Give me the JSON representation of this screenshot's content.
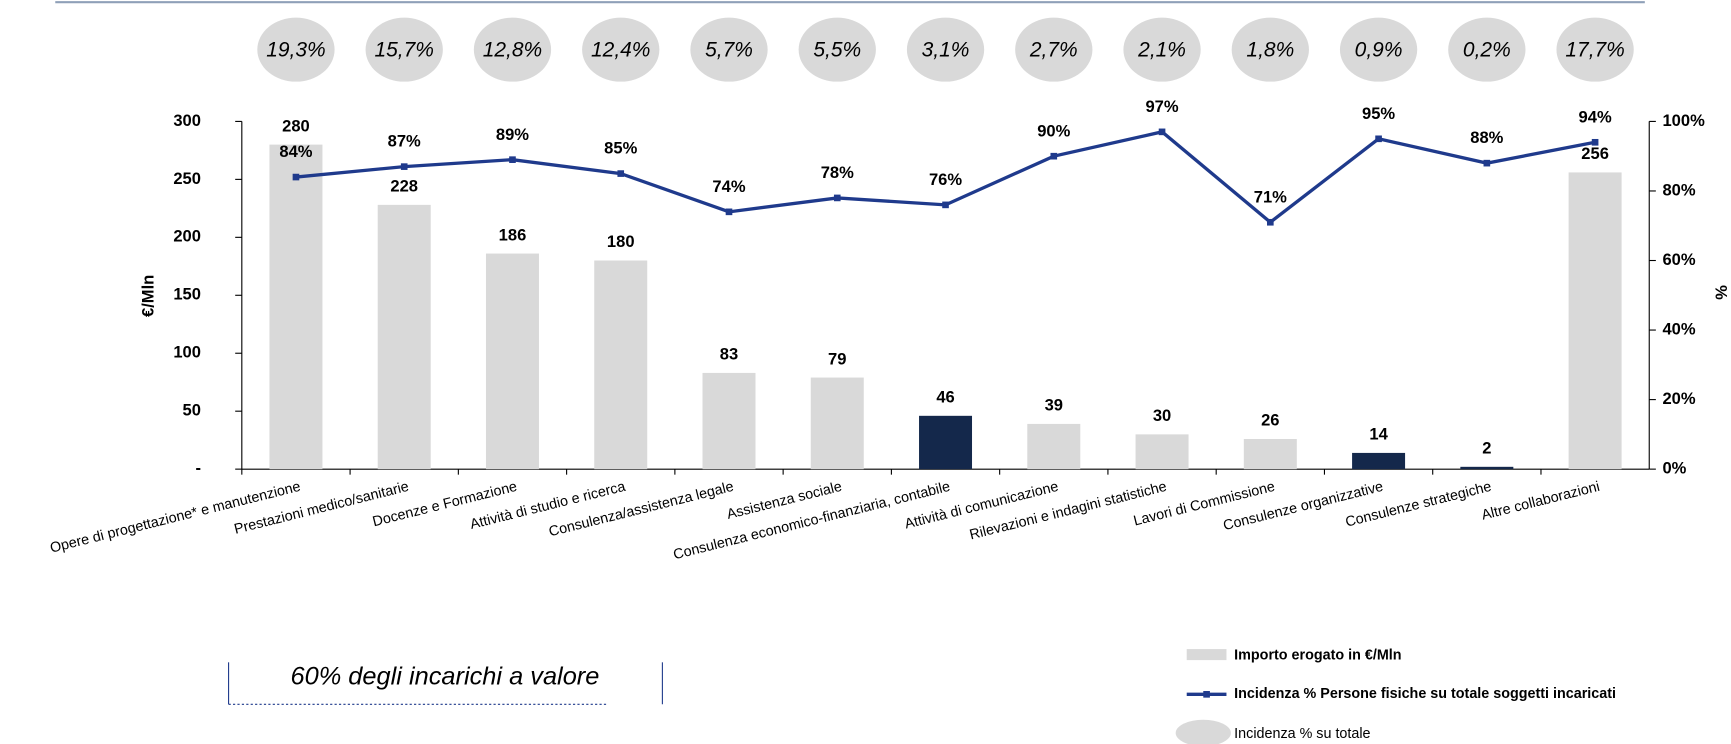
{
  "chart_data": {
    "type": "combo",
    "categories": [
      "Opere di progettazione* e manutenzione",
      "Prestazioni medico/sanitarie",
      "Docenze e Formazione",
      "Attività di studio e ricerca",
      "Consulenza/assistenza legale",
      "Assistenza sociale",
      "Consulenza economico-finanziaria, contabile",
      "Attività di comunicazione",
      "Rilevazioni e indagini statistiche",
      "Lavori di Commissione",
      "Consulenze organizzative",
      "Consulenze strategiche",
      "Altre collaborazioni"
    ],
    "series": [
      {
        "name": "Importo erogato in €/Mln",
        "type": "bar",
        "values": [
          280,
          228,
          186,
          180,
          83,
          79,
          46,
          39,
          30,
          26,
          14,
          2,
          256
        ],
        "colors": [
          "#d9d9d9",
          "#d9d9d9",
          "#d9d9d9",
          "#d9d9d9",
          "#d9d9d9",
          "#d9d9d9",
          "#14284b",
          "#d9d9d9",
          "#d9d9d9",
          "#d9d9d9",
          "#14284b",
          "#14284b",
          "#d9d9d9"
        ]
      },
      {
        "name": "Incidenza % Persone fisiche su totale soggetti incaricati",
        "type": "line",
        "axis": "y2",
        "color": "#1f3a8c",
        "values": [
          84,
          87,
          89,
          85,
          74,
          78,
          76,
          90,
          97,
          71,
          95,
          88,
          94
        ],
        "value_labels": [
          "84%",
          "87%",
          "89%",
          "85%",
          "74%",
          "78%",
          "76%",
          "90%",
          "97%",
          "71%",
          "95%",
          "88%",
          "94%"
        ]
      },
      {
        "name": "Incidenza % su totale",
        "type": "bubble",
        "color": "#d9d9d9",
        "values": [
          19.3,
          15.7,
          12.8,
          12.4,
          5.7,
          5.5,
          3.1,
          2.7,
          2.1,
          1.8,
          0.9,
          0.2,
          17.7
        ],
        "value_labels": [
          "19,3%",
          "15,7%",
          "12,8%",
          "12,4%",
          "5,7%",
          "5,5%",
          "3,1%",
          "2,7%",
          "2,1%",
          "1,8%",
          "0,9%",
          "0,2%",
          "17,7%"
        ]
      }
    ],
    "ylabel": "€/Mln",
    "y2label": "%",
    "ylim": [
      0,
      300
    ],
    "yticks": [
      {
        "value": 0,
        "label": "-"
      },
      50,
      100,
      150,
      200,
      250,
      300
    ],
    "y2lim": [
      0,
      100
    ],
    "y2ticks": [
      {
        "value": 0,
        "label": "0%"
      },
      {
        "value": 20,
        "label": "20%"
      },
      {
        "value": 40,
        "label": "40%"
      },
      {
        "value": 60,
        "label": "60%"
      },
      {
        "value": 80,
        "label": "80%"
      },
      {
        "value": 100,
        "label": "100%"
      }
    ],
    "annotation": "60% degli incarichi a valore"
  }
}
